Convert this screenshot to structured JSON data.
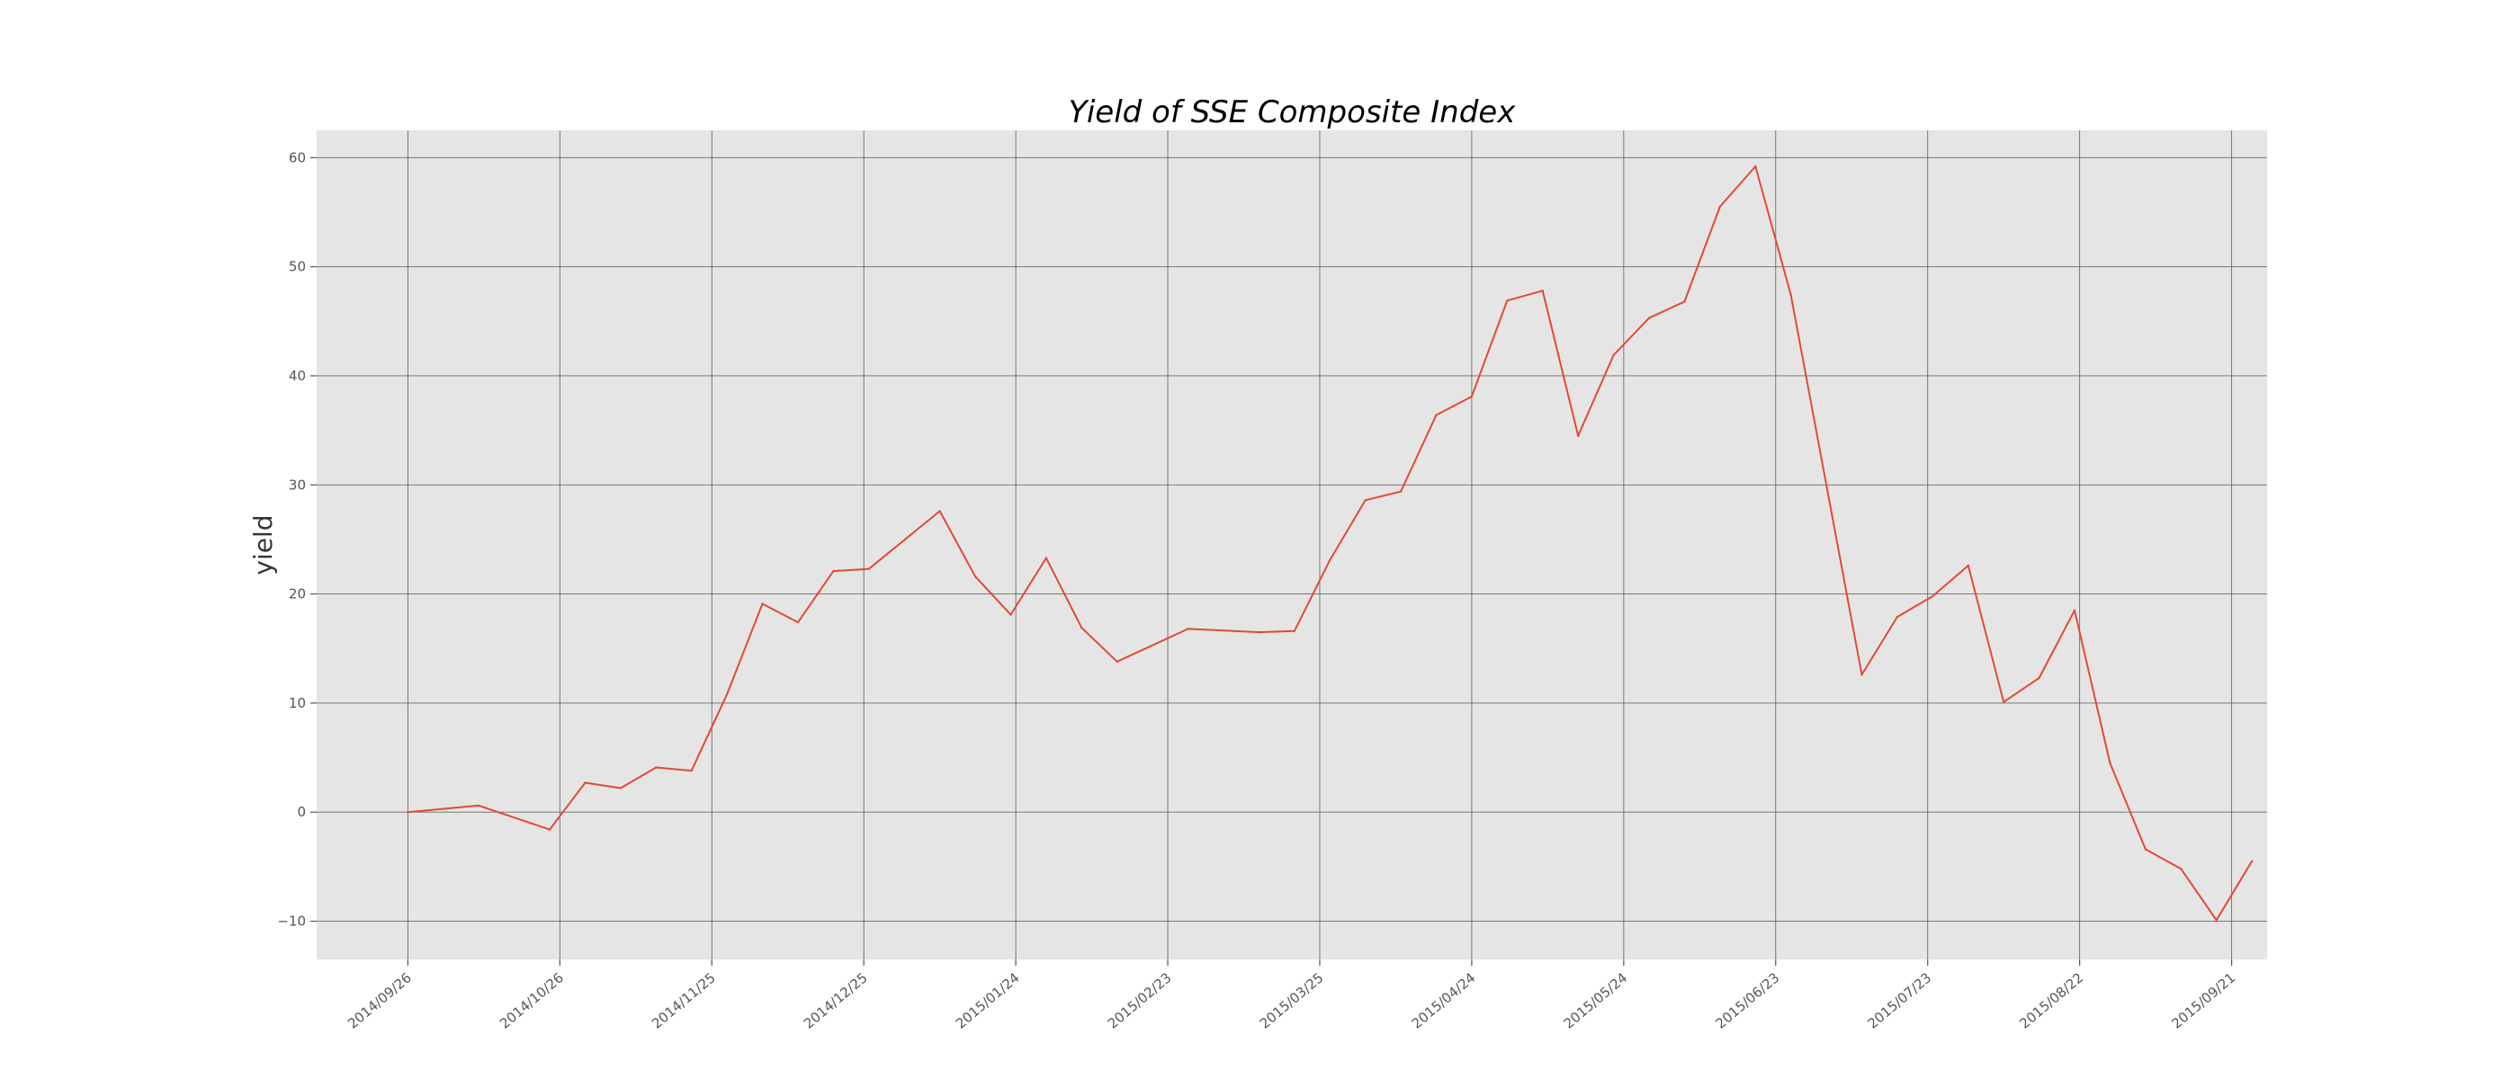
{
  "chart_data": {
    "type": "line",
    "title": "Yield of SSE Composite Index",
    "xlabel": "",
    "ylabel": "yield",
    "x_ticks": [
      "2014/09/26",
      "2014/10/26",
      "2014/11/25",
      "2014/12/25",
      "2015/01/24",
      "2015/02/23",
      "2015/03/25",
      "2015/04/24",
      "2015/05/24",
      "2015/06/23",
      "2015/07/23",
      "2015/08/22",
      "2015/09/21"
    ],
    "y_ticks": [
      -10,
      0,
      10,
      20,
      30,
      40,
      50,
      60
    ],
    "y_tick_labels": [
      "−10",
      "0",
      "10",
      "20",
      "30",
      "40",
      "50",
      "60"
    ],
    "ylim": [
      -13.5,
      62.5
    ],
    "xlim": [
      "2014/09/08",
      "2015/09/28"
    ],
    "grid": true,
    "colors": {
      "line": "#e24a33",
      "background": "#e5e5e5",
      "grid": "#555555"
    },
    "series": [
      {
        "x": [
          "2014/09/26",
          "2014/10/10",
          "2014/10/24",
          "2014/10/31",
          "2014/11/07",
          "2014/11/14",
          "2014/11/21",
          "2014/11/28",
          "2014/12/05",
          "2014/12/12",
          "2014/12/19",
          "2014/12/26",
          "2015/01/09",
          "2015/01/16",
          "2015/01/23",
          "2015/01/30",
          "2015/02/06",
          "2015/02/13",
          "2015/02/27",
          "2015/03/13",
          "2015/03/20",
          "2015/03/27",
          "2015/04/03",
          "2015/04/10",
          "2015/04/17",
          "2015/04/24",
          "2015/05/01",
          "2015/05/08",
          "2015/05/15",
          "2015/05/22",
          "2015/05/29",
          "2015/06/05",
          "2015/06/12",
          "2015/06/19",
          "2015/06/26",
          "2015/07/03",
          "2015/07/10",
          "2015/07/17",
          "2015/07/24",
          "2015/07/31",
          "2015/08/07",
          "2015/08/14",
          "2015/08/21",
          "2015/08/28",
          "2015/09/04",
          "2015/09/11",
          "2015/09/18",
          "2015/09/25"
        ],
        "values": [
          0.0,
          0.6,
          -1.6,
          2.7,
          2.2,
          4.1,
          3.8,
          10.8,
          19.1,
          17.4,
          22.1,
          22.3,
          27.6,
          21.6,
          18.1,
          23.3,
          16.9,
          13.8,
          16.8,
          16.5,
          16.6,
          23.1,
          28.6,
          29.4,
          36.4,
          38.1,
          46.9,
          47.8,
          34.5,
          41.9,
          45.3,
          46.8,
          55.5,
          59.2,
          47.4,
          30.0,
          12.6,
          17.9,
          19.8,
          22.6,
          10.1,
          12.3,
          18.5,
          4.5,
          -3.4,
          -5.2,
          -9.9,
          -4.5
        ]
      }
    ]
  }
}
